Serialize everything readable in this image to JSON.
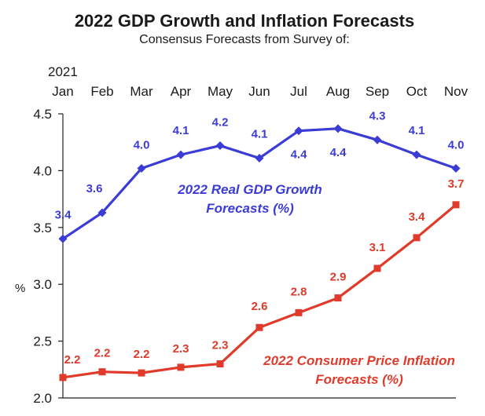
{
  "chart_data": {
    "type": "line",
    "title": "2022 GDP Growth and Inflation Forecasts",
    "subtitle": "Consensus Forecasts from Survey of:",
    "year_label": "2021",
    "categories": [
      "Jan",
      "Feb",
      "Mar",
      "Apr",
      "May",
      "Jun",
      "Jul",
      "Aug",
      "Sep",
      "Oct",
      "Nov"
    ],
    "ylabel": "%",
    "ylim": [
      2.0,
      4.5
    ],
    "yticks": [
      "2.0",
      "2.5",
      "3.0",
      "3.5",
      "4.0",
      "4.5"
    ],
    "grid": false,
    "series": [
      {
        "name": "2022 Real GDP Growth Forecasts (%)",
        "name_line1": "2022 Real GDP Growth",
        "name_line2": "Forecasts (%)",
        "color": "#3b3bd6",
        "marker": "diamond",
        "values": [
          3.4,
          3.63,
          4.02,
          4.14,
          4.22,
          4.11,
          4.35,
          4.37,
          4.27,
          4.14,
          4.02
        ],
        "labels": [
          "3.4",
          "3.6",
          "4.0",
          "4.1",
          "4.2",
          "4.1",
          "4.4",
          "4.4",
          "4.3",
          "4.1",
          "4.0"
        ]
      },
      {
        "name": "2022 Consumer Price Inflation Forecasts (%)",
        "name_line1": "2022 Consumer Price Inflation",
        "name_line2": "Forecasts (%)",
        "color": "#e03a2b",
        "marker": "square",
        "values": [
          2.18,
          2.23,
          2.22,
          2.27,
          2.3,
          2.62,
          2.75,
          2.88,
          3.14,
          3.41,
          3.7
        ],
        "labels": [
          "2.2",
          "2.2",
          "2.2",
          "2.3",
          "2.3",
          "2.6",
          "2.8",
          "2.9",
          "3.1",
          "3.4",
          "3.7"
        ]
      }
    ]
  }
}
